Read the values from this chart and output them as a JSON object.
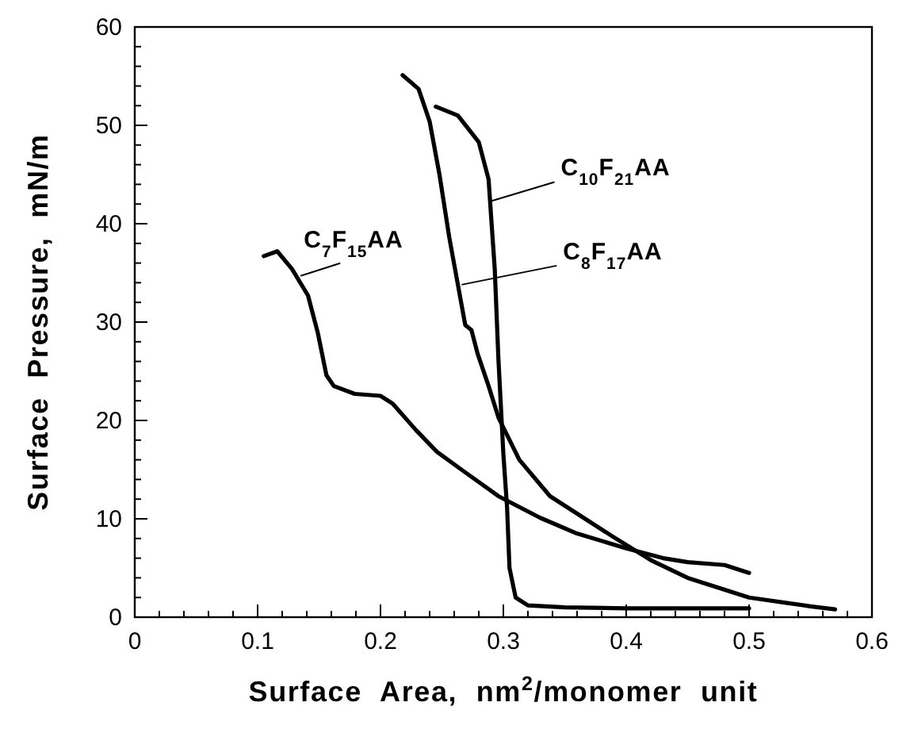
{
  "chart_data": {
    "type": "line",
    "xlabel": "Surface Area, nm$^{2}$/monomer unit",
    "ylabel": "Surface Pressure, mN/m",
    "xlim": [
      0,
      0.6
    ],
    "ylim": [
      0,
      60
    ],
    "xticks": [
      0,
      {
        "value": 0.02,
        "label": null
      },
      {
        "value": 0.04,
        "label": null
      },
      {
        "value": 0.06,
        "label": null
      },
      {
        "value": 0.08,
        "label": null
      },
      0.1,
      {
        "value": 0.12,
        "label": null
      },
      {
        "value": 0.14,
        "label": null
      },
      {
        "value": 0.16,
        "label": null
      },
      {
        "value": 0.18,
        "label": null
      },
      0.2,
      {
        "value": 0.22,
        "label": null
      },
      {
        "value": 0.24,
        "label": null
      },
      {
        "value": 0.26,
        "label": null
      },
      {
        "value": 0.28,
        "label": null
      },
      0.3,
      {
        "value": 0.32,
        "label": null
      },
      {
        "value": 0.34,
        "label": null
      },
      {
        "value": 0.36,
        "label": null
      },
      {
        "value": 0.38,
        "label": null
      },
      0.4,
      {
        "value": 0.42,
        "label": null
      },
      {
        "value": 0.44,
        "label": null
      },
      {
        "value": 0.46,
        "label": null
      },
      {
        "value": 0.48,
        "label": null
      },
      0.5,
      {
        "value": 0.52,
        "label": null
      },
      {
        "value": 0.54,
        "label": null
      },
      {
        "value": 0.56,
        "label": null
      },
      {
        "value": 0.58,
        "label": null
      },
      0.6
    ],
    "yticks": [
      0,
      {
        "value": 2,
        "label": null
      },
      {
        "value": 4,
        "label": null
      },
      {
        "value": 6,
        "label": null
      },
      {
        "value": 8,
        "label": null
      },
      10,
      {
        "value": 12,
        "label": null
      },
      {
        "value": 14,
        "label": null
      },
      {
        "value": 16,
        "label": null
      },
      {
        "value": 18,
        "label": null
      },
      20,
      {
        "value": 22,
        "label": null
      },
      {
        "value": 24,
        "label": null
      },
      {
        "value": 26,
        "label": null
      },
      {
        "value": 28,
        "label": null
      },
      30,
      {
        "value": 32,
        "label": null
      },
      {
        "value": 34,
        "label": null
      },
      {
        "value": 36,
        "label": null
      },
      {
        "value": 38,
        "label": null
      },
      40,
      {
        "value": 42,
        "label": null
      },
      {
        "value": 44,
        "label": null
      },
      {
        "value": 46,
        "label": null
      },
      {
        "value": 48,
        "label": null
      },
      50,
      {
        "value": 52,
        "label": null
      },
      {
        "value": 54,
        "label": null
      },
      {
        "value": 56,
        "label": null
      },
      {
        "value": 58,
        "label": null
      },
      60
    ],
    "grid": false,
    "marker": "none",
    "line_style": "solid",
    "series": [
      {
        "color": "#000000",
        "x": [
          0.105,
          0.116,
          0.128,
          0.141,
          0.149,
          0.156,
          0.162,
          0.179,
          0.2,
          0.21,
          0.229,
          0.246,
          0.267,
          0.296,
          0.33,
          0.36,
          0.4,
          0.43,
          0.45,
          0.48,
          0.5
        ],
        "values": [
          36.7,
          37.2,
          35.4,
          32.7,
          28.9,
          24.6,
          23.5,
          22.7,
          22.5,
          21.7,
          19,
          16.8,
          14.9,
          12.3,
          10.1,
          8.5,
          7,
          6,
          5.6,
          5.3,
          4.5
        ]
      },
      {
        "color": "#000000",
        "x": [
          0.218,
          0.231,
          0.24,
          0.248,
          0.256,
          0.263,
          0.269,
          0.274,
          0.279,
          0.288,
          0.296,
          0.313,
          0.338,
          0.389,
          0.42,
          0.45,
          0.5,
          0.55,
          0.57
        ],
        "values": [
          55.1,
          53.7,
          50.4,
          45,
          38.6,
          33.8,
          29.7,
          29.2,
          26.8,
          23.5,
          20.3,
          16,
          12.3,
          8.2,
          5.8,
          4,
          2,
          1.1,
          0.8
        ]
      },
      {
        "color": "#000000",
        "x": [
          0.245,
          0.263,
          0.28,
          0.288,
          0.29,
          0.293,
          0.296,
          0.3,
          0.303,
          0.305,
          0.31,
          0.32,
          0.35,
          0.4,
          0.5
        ],
        "values": [
          51.9,
          51,
          48.3,
          44.5,
          40.8,
          35.4,
          26.2,
          16.6,
          11.2,
          5,
          2,
          1.2,
          1,
          0.9,
          0.9
        ]
      }
    ],
    "annotations": [
      {
        "text": "C$_{7}$F$_{15}$AA",
        "x": 0.135,
        "y": 34.7
      },
      {
        "text": "C$_{10}$F$_{21}$AA",
        "x": 0.29,
        "y": 42.3
      },
      {
        "text": "C$_{8}$F$_{17}$AA",
        "x": 0.266,
        "y": 33.8
      }
    ]
  }
}
